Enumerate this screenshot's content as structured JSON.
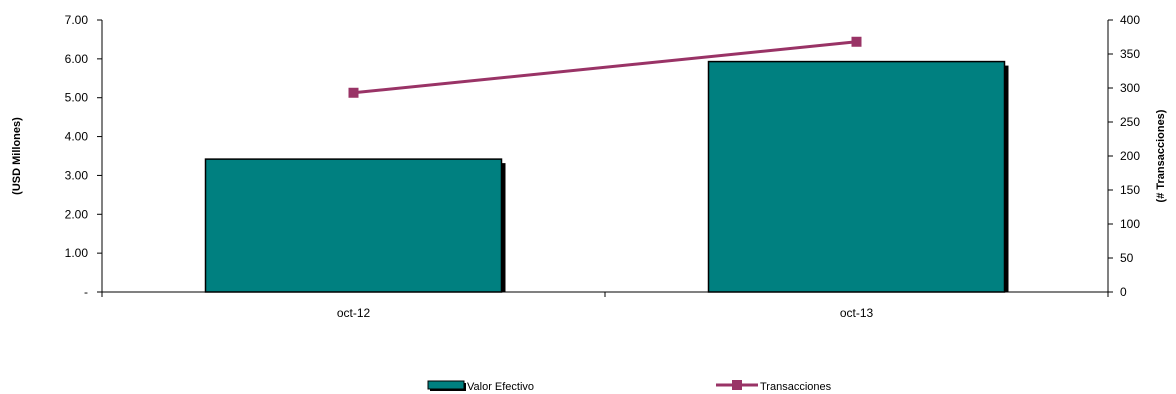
{
  "chart_data": {
    "type": "bar",
    "categories": [
      "oct-12",
      "oct-13"
    ],
    "series": [
      {
        "name": "Valor Efectivo",
        "type": "bar",
        "axis": "left",
        "values": [
          3.42,
          5.93
        ],
        "color": "#008080",
        "shadow_color": "#000000"
      },
      {
        "name": "Transacciones",
        "type": "line",
        "axis": "right",
        "values": [
          293,
          368
        ],
        "color": "#993366",
        "marker": "square"
      }
    ],
    "y_left": {
      "label": "(USD Millones)",
      "ylim": [
        0,
        7
      ],
      "ticks": [
        0,
        1,
        2,
        3,
        4,
        5,
        6,
        7
      ],
      "tick_labels": [
        "-",
        "1.00",
        "2.00",
        "3.00",
        "4.00",
        "5.00",
        "6.00",
        "7.00"
      ]
    },
    "y_right": {
      "label": "(# Transacciones)",
      "ylim": [
        0,
        400
      ],
      "ticks": [
        0,
        50,
        100,
        150,
        200,
        250,
        300,
        350,
        400
      ],
      "tick_labels": [
        "0",
        "50",
        "100",
        "150",
        "200",
        "250",
        "300",
        "350",
        "400"
      ]
    },
    "grid": false,
    "legend_position": "bottom"
  }
}
